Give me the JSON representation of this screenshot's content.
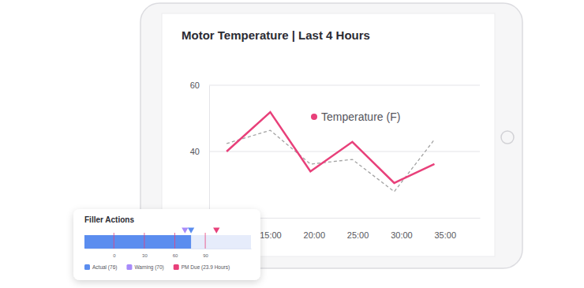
{
  "chart_data": [
    {
      "type": "line",
      "title": "Motor Temperature | Last 4 Hours",
      "x": [
        10,
        15,
        19.6,
        24.4,
        29.2,
        33.8
      ],
      "series": [
        {
          "name": "Temperature (F)",
          "color": "#e8407a",
          "line_style": "solid",
          "values": [
            40,
            51.9,
            34,
            42.9,
            30.5,
            36.2
          ]
        },
        {
          "color": "#a3a3a3",
          "line_style": "dashed",
          "values": [
            42.4,
            46.4,
            36.2,
            37.6,
            27.9,
            43.6
          ]
        }
      ],
      "xlim": [
        8,
        39
      ],
      "xticks": [
        {
          "value": 15,
          "label": "15:00"
        },
        {
          "value": 20,
          "label": "20:00"
        },
        {
          "value": 25,
          "label": "25:00"
        },
        {
          "value": 30,
          "label": "30:00"
        },
        {
          "value": 35,
          "label": "35:00"
        }
      ],
      "ylim": [
        20,
        60
      ],
      "yticks": [
        40,
        60
      ],
      "grid": true,
      "legend": "top"
    },
    {
      "type": "bar",
      "orientation": "horizontal",
      "title": "Filler Actions",
      "xlim": [
        -29,
        135
      ],
      "xticks": [
        0,
        30,
        60,
        90
      ],
      "grid": true,
      "series": [
        {
          "name": "Actual (76)",
          "type": "bar",
          "marker": "triangle",
          "color": "#5b8def",
          "values": [
            76
          ]
        },
        {
          "name": "Warning (70)",
          "type": "scatter",
          "marker": "triangle",
          "color": "#a78bfa",
          "values": [
            70
          ]
        },
        {
          "name": "PM Due (23.9 Hours)",
          "type": "scatter",
          "marker": "triangle",
          "color": "#e8407a",
          "values": [
            101
          ]
        }
      ]
    }
  ]
}
